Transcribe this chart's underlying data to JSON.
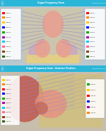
{
  "title_top": "Organ Frequency Scan",
  "title_bottom": "Organ Frequency Scan - Anterior Position",
  "header_color": "#29b6d8",
  "bg_color": "#d8d8d8",
  "legend_colors_left1": [
    "#ff0000",
    "#ff8800",
    "#ffcc00",
    "#0000ff",
    "#00aa00",
    "#aa00aa",
    "#00ccff",
    "#ff6699",
    "#884400",
    "#336600"
  ],
  "legend_colors_right1": [
    "#ff0000",
    "#ff8800",
    "#ffcc00",
    "#0000ff",
    "#00aa00",
    "#aa00aa",
    "#00ccff",
    "#ff6699",
    "#884400",
    "#336600"
  ],
  "legend_colors_left2": [
    "#ffcc00",
    "#ff8800",
    "#ff0000",
    "#0000ff",
    "#00aa00",
    "#aa00aa",
    "#00ccff",
    "#ff6699",
    "#884400",
    "#336600"
  ],
  "legend_colors_right2": [
    "#00aa00",
    "#ffcc00",
    "#ff0000",
    "#0000ff",
    "#aa00aa",
    "#ff8800"
  ],
  "line_color": "#8888cc",
  "anatomy_pink": "#e8a090",
  "anatomy_dark": "#c06050",
  "anatomy_purple": "#c8a0c8",
  "anatomy_yellow": "#e8d080",
  "anatomy_tan": "#d4c4a0",
  "panel2_red": "#c04840",
  "panel2_yellow": "#d4c070",
  "panel2_peach": "#e89080",
  "panel2_tan": "#d4b896"
}
